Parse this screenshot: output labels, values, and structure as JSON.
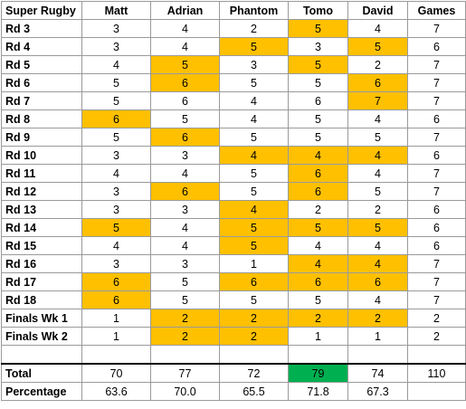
{
  "colors": {
    "highlight": "#ffc000",
    "winner": "#00b050"
  },
  "headers": [
    "Super Rugby",
    "Matt",
    "Adrian",
    "Phantom",
    "Tomo",
    "David",
    "Games"
  ],
  "rows": [
    {
      "label": "Rd 3",
      "values": [
        "3",
        "4",
        "2",
        "5",
        "4",
        "7"
      ],
      "hl": [
        false,
        false,
        false,
        true,
        false
      ]
    },
    {
      "label": "Rd 4",
      "values": [
        "3",
        "4",
        "5",
        "3",
        "5",
        "6"
      ],
      "hl": [
        false,
        false,
        true,
        false,
        true
      ]
    },
    {
      "label": "Rd 5",
      "values": [
        "4",
        "5",
        "3",
        "5",
        "2",
        "7"
      ],
      "hl": [
        false,
        true,
        false,
        true,
        false
      ]
    },
    {
      "label": "Rd 6",
      "values": [
        "5",
        "6",
        "5",
        "5",
        "6",
        "7"
      ],
      "hl": [
        false,
        true,
        false,
        false,
        true
      ]
    },
    {
      "label": "Rd 7",
      "values": [
        "5",
        "6",
        "4",
        "6",
        "7",
        "7"
      ],
      "hl": [
        false,
        false,
        false,
        false,
        true
      ]
    },
    {
      "label": "Rd 8",
      "values": [
        "6",
        "5",
        "4",
        "5",
        "4",
        "6"
      ],
      "hl": [
        true,
        false,
        false,
        false,
        false
      ]
    },
    {
      "label": "Rd 9",
      "values": [
        "5",
        "6",
        "5",
        "5",
        "5",
        "7"
      ],
      "hl": [
        false,
        true,
        false,
        false,
        false
      ]
    },
    {
      "label": "Rd 10",
      "values": [
        "3",
        "3",
        "4",
        "4",
        "4",
        "6"
      ],
      "hl": [
        false,
        false,
        true,
        true,
        true
      ]
    },
    {
      "label": "Rd 11",
      "values": [
        "4",
        "4",
        "5",
        "6",
        "4",
        "7"
      ],
      "hl": [
        false,
        false,
        false,
        true,
        false
      ]
    },
    {
      "label": "Rd 12",
      "values": [
        "3",
        "6",
        "5",
        "6",
        "5",
        "7"
      ],
      "hl": [
        false,
        true,
        false,
        true,
        false
      ]
    },
    {
      "label": "Rd 13",
      "values": [
        "3",
        "3",
        "4",
        "2",
        "2",
        "6"
      ],
      "hl": [
        false,
        false,
        true,
        false,
        false
      ]
    },
    {
      "label": "Rd 14",
      "values": [
        "5",
        "4",
        "5",
        "5",
        "5",
        "6"
      ],
      "hl": [
        true,
        false,
        true,
        true,
        true
      ]
    },
    {
      "label": "Rd 15",
      "values": [
        "4",
        "4",
        "5",
        "4",
        "4",
        "6"
      ],
      "hl": [
        false,
        false,
        true,
        false,
        false
      ]
    },
    {
      "label": "Rd 16",
      "values": [
        "3",
        "3",
        "1",
        "4",
        "4",
        "7"
      ],
      "hl": [
        false,
        false,
        false,
        true,
        true
      ]
    },
    {
      "label": "Rd 17",
      "values": [
        "6",
        "5",
        "6",
        "6",
        "6",
        "7"
      ],
      "hl": [
        true,
        false,
        true,
        true,
        true
      ]
    },
    {
      "label": "Rd 18",
      "values": [
        "6",
        "5",
        "5",
        "5",
        "4",
        "7"
      ],
      "hl": [
        true,
        false,
        false,
        false,
        false
      ]
    },
    {
      "label": "Finals Wk 1",
      "values": [
        "1",
        "2",
        "2",
        "2",
        "2",
        "2"
      ],
      "hl": [
        false,
        true,
        true,
        true,
        true
      ]
    },
    {
      "label": "Finals Wk 2",
      "values": [
        "1",
        "2",
        "2",
        "1",
        "1",
        "2"
      ],
      "hl": [
        false,
        true,
        true,
        false,
        false
      ]
    }
  ],
  "total": {
    "label": "Total",
    "values": [
      "70",
      "77",
      "72",
      "79",
      "74",
      "110"
    ],
    "winner_index": 3
  },
  "percentage": {
    "label": "Percentage",
    "values": [
      "63.6",
      "70.0",
      "65.5",
      "71.8",
      "67.3",
      ""
    ]
  }
}
